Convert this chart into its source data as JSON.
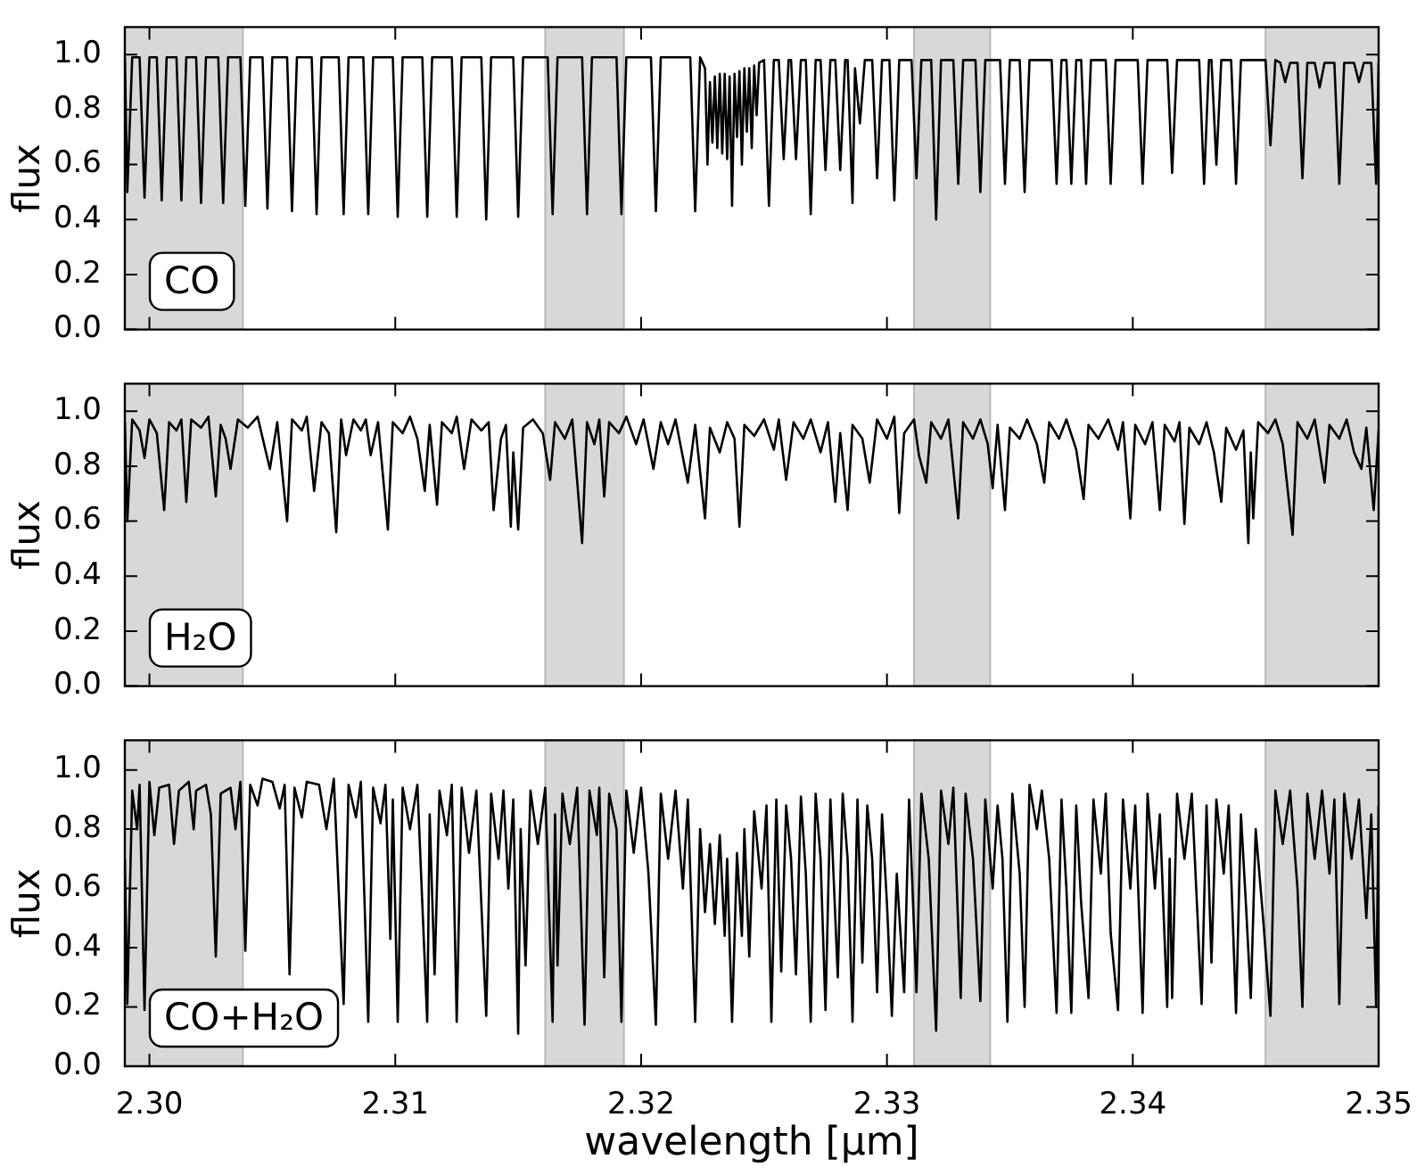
{
  "chart_data": [
    {
      "type": "line",
      "ylabel": "flux",
      "color": "#000000",
      "annotations": [
        "CO"
      ],
      "tick_labels": "y",
      "xlim": [
        2.299,
        2.35
      ],
      "ylim": [
        0,
        1.1
      ],
      "xticks": [
        2.3,
        2.31,
        2.32,
        2.33,
        2.34,
        2.35
      ],
      "yticks": [
        {
          "value": 0,
          "label": "0.0"
        },
        {
          "value": 0.2,
          "label": "0.2"
        },
        {
          "value": 0.4,
          "label": "0.4"
        },
        {
          "value": 0.6,
          "label": "0.6"
        },
        {
          "value": 0.8,
          "label": "0.8"
        },
        {
          "value": 1,
          "label": "1.0"
        }
      ],
      "bands": [
        {
          "axis": "x",
          "from": 2.299,
          "to": 2.3038,
          "color": "#d8d8d8"
        },
        {
          "axis": "x",
          "from": 2.3161,
          "to": 2.3193,
          "color": "#d8d8d8"
        },
        {
          "axis": "x",
          "from": 2.3311,
          "to": 2.3342,
          "color": "#d8d8d8"
        },
        {
          "axis": "x",
          "from": 2.3454,
          "to": 2.35,
          "color": "#d8d8d8"
        }
      ],
      "x": [
        2.299,
        2.2991,
        2.2993,
        2.2996,
        2.2998,
        2.3,
        2.3003,
        2.3005,
        2.3007,
        2.3011,
        2.3013,
        2.3015,
        2.3019,
        2.3021,
        2.3023,
        2.3028,
        2.303,
        2.3032,
        2.3037,
        2.3039,
        2.3041,
        2.3046,
        2.3048,
        2.305,
        2.3056,
        2.3058,
        2.306,
        2.3066,
        2.3068,
        2.307,
        2.3077,
        2.3079,
        2.3081,
        2.3087,
        2.3089,
        2.3091,
        2.3099,
        2.3101,
        2.3103,
        2.3111,
        2.3113,
        2.3115,
        2.3123,
        2.3125,
        2.3127,
        2.3135,
        2.3137,
        2.3139,
        2.3148,
        2.315,
        2.3152,
        2.3162,
        2.3164,
        2.3166,
        2.3176,
        2.3178,
        2.318,
        2.319,
        2.3192,
        2.3194,
        2.3204,
        2.3206,
        2.3208,
        2.322,
        2.3222,
        2.3224,
        2.3226,
        2.3227,
        2.3228,
        2.3229,
        2.323,
        2.3231,
        2.3232,
        2.3233,
        2.3234,
        2.3235,
        2.3236,
        2.3237,
        2.3238,
        2.3239,
        2.324,
        2.3241,
        2.3242,
        2.3243,
        2.3244,
        2.3245,
        2.3246,
        2.3247,
        2.3248,
        2.325,
        2.3252,
        2.3254,
        2.3256,
        2.3258,
        2.326,
        2.3261,
        2.3263,
        2.3265,
        2.3267,
        2.3269,
        2.3271,
        2.3273,
        2.3275,
        2.3277,
        2.3279,
        2.3281,
        2.3283,
        2.3284,
        2.3286,
        2.3287,
        2.3289,
        2.3291,
        2.3294,
        2.3296,
        2.3298,
        2.3301,
        2.3303,
        2.3305,
        2.331,
        2.3312,
        2.3314,
        2.3318,
        2.332,
        2.3322,
        2.3327,
        2.3329,
        2.3331,
        2.3336,
        2.3338,
        2.334,
        2.3346,
        2.3348,
        2.335,
        2.3354,
        2.3356,
        2.3358,
        2.3367,
        2.3369,
        2.3371,
        2.3373,
        2.3375,
        2.3377,
        2.3379,
        2.3381,
        2.3383,
        2.3389,
        2.3391,
        2.3393,
        2.3402,
        2.3404,
        2.3406,
        2.3414,
        2.3416,
        2.3418,
        2.3427,
        2.3429,
        2.3431,
        2.3432,
        2.3434,
        2.3436,
        2.344,
        2.3442,
        2.3444,
        2.3454,
        2.3456,
        2.3458,
        2.346,
        2.3462,
        2.3464,
        2.3467,
        2.3469,
        2.3471,
        2.3474,
        2.3476,
        2.3478,
        2.3482,
        2.3484,
        2.3486,
        2.349,
        2.3492,
        2.3494,
        2.3497,
        2.3499,
        2.35
      ],
      "values": [
        0.99,
        0.5,
        0.99,
        0.99,
        0.48,
        0.99,
        0.99,
        0.47,
        0.99,
        0.99,
        0.47,
        0.99,
        0.99,
        0.46,
        0.99,
        0.99,
        0.46,
        0.99,
        0.99,
        0.45,
        0.99,
        0.99,
        0.44,
        0.99,
        0.99,
        0.43,
        0.99,
        0.99,
        0.42,
        0.99,
        0.99,
        0.42,
        0.99,
        0.99,
        0.42,
        0.99,
        0.99,
        0.41,
        0.99,
        0.99,
        0.41,
        0.99,
        0.99,
        0.41,
        0.99,
        0.99,
        0.4,
        0.99,
        0.99,
        0.41,
        0.99,
        0.99,
        0.42,
        0.99,
        0.99,
        0.42,
        0.99,
        0.99,
        0.42,
        0.99,
        0.99,
        0.43,
        0.99,
        0.99,
        0.43,
        0.99,
        0.95,
        0.6,
        0.9,
        0.68,
        0.92,
        0.66,
        0.93,
        0.64,
        0.93,
        0.62,
        0.92,
        0.45,
        0.93,
        0.7,
        0.94,
        0.6,
        0.95,
        0.72,
        0.95,
        0.66,
        0.96,
        0.78,
        0.97,
        0.98,
        0.45,
        0.98,
        0.98,
        0.62,
        0.98,
        0.98,
        0.62,
        0.98,
        0.98,
        0.42,
        0.98,
        0.98,
        0.58,
        0.98,
        0.98,
        0.58,
        0.98,
        0.98,
        0.46,
        0.95,
        0.75,
        0.98,
        0.98,
        0.55,
        0.98,
        0.98,
        0.47,
        0.98,
        0.98,
        0.55,
        0.98,
        0.98,
        0.4,
        0.98,
        0.98,
        0.53,
        0.98,
        0.98,
        0.5,
        0.98,
        0.98,
        0.53,
        0.98,
        0.98,
        0.5,
        0.98,
        0.98,
        0.53,
        0.98,
        0.98,
        0.53,
        0.98,
        0.98,
        0.53,
        0.98,
        0.98,
        0.53,
        0.98,
        0.98,
        0.53,
        0.98,
        0.98,
        0.57,
        0.98,
        0.98,
        0.53,
        0.98,
        0.98,
        0.6,
        0.98,
        0.98,
        0.53,
        0.98,
        0.98,
        0.67,
        0.98,
        0.97,
        0.9,
        0.97,
        0.97,
        0.55,
        0.97,
        0.97,
        0.88,
        0.97,
        0.97,
        0.53,
        0.97,
        0.97,
        0.9,
        0.97,
        0.97,
        0.53,
        0.97
      ]
    },
    {
      "type": "line",
      "ylabel": "flux",
      "color": "#000000",
      "annotations": [
        "H₂O"
      ],
      "tick_labels": "y",
      "xlim": [
        2.299,
        2.35
      ],
      "ylim": [
        0,
        1.1
      ],
      "xticks": [
        2.3,
        2.31,
        2.32,
        2.33,
        2.34,
        2.35
      ],
      "yticks": [
        {
          "value": 0,
          "label": "0.0"
        },
        {
          "value": 0.2,
          "label": "0.2"
        },
        {
          "value": 0.4,
          "label": "0.4"
        },
        {
          "value": 0.6,
          "label": "0.6"
        },
        {
          "value": 0.8,
          "label": "0.8"
        },
        {
          "value": 1,
          "label": "1.0"
        }
      ],
      "bands": [
        {
          "axis": "x",
          "from": 2.299,
          "to": 2.3038,
          "color": "#d8d8d8"
        },
        {
          "axis": "x",
          "from": 2.3161,
          "to": 2.3193,
          "color": "#d8d8d8"
        },
        {
          "axis": "x",
          "from": 2.3311,
          "to": 2.3342,
          "color": "#d8d8d8"
        },
        {
          "axis": "x",
          "from": 2.3454,
          "to": 2.35,
          "color": "#d8d8d8"
        }
      ],
      "x": [
        2.299,
        2.2991,
        2.2993,
        2.2996,
        2.2998,
        2.3,
        2.3003,
        2.3006,
        2.3008,
        2.3011,
        2.3013,
        2.3015,
        2.3017,
        2.3021,
        2.3024,
        2.3027,
        2.3029,
        2.3031,
        2.3033,
        2.3036,
        2.304,
        2.3044,
        2.3049,
        2.3052,
        2.3056,
        2.3058,
        2.3062,
        2.3064,
        2.3067,
        2.307,
        2.3073,
        2.3076,
        2.3078,
        2.308,
        2.3083,
        2.3086,
        2.3088,
        2.309,
        2.3093,
        2.3097,
        2.3099,
        2.3103,
        2.3106,
        2.3109,
        2.3112,
        2.3114,
        2.3117,
        2.3119,
        2.3123,
        2.3125,
        2.3128,
        2.3131,
        2.3135,
        2.3138,
        2.314,
        2.3143,
        2.3145,
        2.3147,
        2.3148,
        2.315,
        2.3152,
        2.3156,
        2.316,
        2.3163,
        2.3165,
        2.3169,
        2.3172,
        2.3176,
        2.3178,
        2.3181,
        2.3183,
        2.3185,
        2.3187,
        2.3191,
        2.3194,
        2.3198,
        2.3201,
        2.3205,
        2.3208,
        2.3211,
        2.3214,
        2.3219,
        2.3222,
        2.3226,
        2.3228,
        2.3232,
        2.3235,
        2.3238,
        2.324,
        2.3242,
        2.3246,
        2.325,
        2.3254,
        2.3256,
        2.3259,
        2.3262,
        2.3266,
        2.3269,
        2.3273,
        2.3276,
        2.3279,
        2.3281,
        2.3284,
        2.3286,
        2.329,
        2.3293,
        2.3296,
        2.33,
        2.3303,
        2.3305,
        2.3307,
        2.3311,
        2.3313,
        2.3316,
        2.3318,
        2.3322,
        2.3325,
        2.3329,
        2.3331,
        2.3335,
        2.3338,
        2.3341,
        2.3343,
        2.3345,
        2.3348,
        2.335,
        2.3354,
        2.3357,
        2.3361,
        2.3364,
        2.3366,
        2.337,
        2.3373,
        2.3377,
        2.338,
        2.3382,
        2.3386,
        2.339,
        2.3394,
        2.3396,
        2.3399,
        2.3401,
        2.3405,
        2.3408,
        2.3411,
        2.3413,
        2.3417,
        2.3419,
        2.3421,
        2.3423,
        2.3427,
        2.343,
        2.3433,
        2.3436,
        2.3438,
        2.3442,
        2.3445,
        2.3447,
        2.3448,
        2.3449,
        2.3451,
        2.3455,
        2.3458,
        2.3461,
        2.3465,
        2.3467,
        2.3471,
        2.3474,
        2.3478,
        2.348,
        2.3484,
        2.3487,
        2.349,
        2.3493,
        2.3495,
        2.3498,
        2.35
      ],
      "values": [
        0.96,
        0.6,
        0.97,
        0.93,
        0.83,
        0.97,
        0.92,
        0.64,
        0.96,
        0.93,
        0.97,
        0.67,
        0.97,
        0.94,
        0.98,
        0.69,
        0.95,
        0.9,
        0.79,
        0.97,
        0.94,
        0.98,
        0.79,
        0.96,
        0.6,
        0.97,
        0.93,
        0.98,
        0.71,
        0.96,
        0.92,
        0.56,
        0.97,
        0.84,
        0.97,
        0.93,
        0.97,
        0.84,
        0.96,
        0.57,
        0.96,
        0.92,
        0.98,
        0.9,
        0.71,
        0.95,
        0.66,
        0.96,
        0.92,
        0.98,
        0.79,
        0.97,
        0.93,
        0.96,
        0.64,
        0.9,
        0.95,
        0.58,
        0.85,
        0.57,
        0.94,
        0.97,
        0.92,
        0.75,
        0.96,
        0.9,
        0.97,
        0.52,
        0.96,
        0.88,
        0.97,
        0.69,
        0.96,
        0.92,
        0.98,
        0.88,
        0.97,
        0.79,
        0.96,
        0.88,
        0.97,
        0.74,
        0.95,
        0.61,
        0.94,
        0.85,
        0.96,
        0.9,
        0.58,
        0.95,
        0.91,
        0.97,
        0.86,
        0.97,
        0.75,
        0.96,
        0.9,
        0.97,
        0.85,
        0.96,
        0.67,
        0.92,
        0.64,
        0.95,
        0.9,
        0.74,
        0.97,
        0.9,
        0.98,
        0.63,
        0.92,
        0.97,
        0.84,
        0.74,
        0.96,
        0.9,
        0.97,
        0.61,
        0.96,
        0.9,
        0.97,
        0.88,
        0.72,
        0.95,
        0.64,
        0.94,
        0.9,
        0.97,
        0.88,
        0.74,
        0.96,
        0.9,
        0.97,
        0.86,
        0.68,
        0.95,
        0.9,
        0.97,
        0.86,
        0.96,
        0.61,
        0.95,
        0.88,
        0.96,
        0.64,
        0.95,
        0.89,
        0.96,
        0.59,
        0.94,
        0.88,
        0.96,
        0.85,
        0.67,
        0.94,
        0.86,
        0.93,
        0.52,
        0.85,
        0.61,
        0.96,
        0.92,
        0.97,
        0.88,
        0.55,
        0.96,
        0.9,
        0.97,
        0.74,
        0.95,
        0.9,
        0.97,
        0.85,
        0.79,
        0.94,
        0.64,
        0.93
      ]
    },
    {
      "type": "line",
      "ylabel": "flux",
      "xlabel": "wavelength [μm]",
      "color": "#000000",
      "annotations": [
        "CO+H₂O"
      ],
      "xlim": [
        2.299,
        2.35
      ],
      "ylim": [
        0,
        1.1
      ],
      "xticks": [
        {
          "value": 2.3,
          "label": "2.30"
        },
        {
          "value": 2.31,
          "label": "2.31"
        },
        {
          "value": 2.32,
          "label": "2.32"
        },
        {
          "value": 2.33,
          "label": "2.33"
        },
        {
          "value": 2.34,
          "label": "2.34"
        },
        {
          "value": 2.35,
          "label": "2.35"
        }
      ],
      "yticks": [
        {
          "value": 0,
          "label": "0.0"
        },
        {
          "value": 0.2,
          "label": "0.2"
        },
        {
          "value": 0.4,
          "label": "0.4"
        },
        {
          "value": 0.6,
          "label": "0.6"
        },
        {
          "value": 0.8,
          "label": "0.8"
        },
        {
          "value": 1,
          "label": "1.0"
        }
      ],
      "bands": [
        {
          "axis": "x",
          "from": 2.299,
          "to": 2.3038,
          "color": "#d8d8d8"
        },
        {
          "axis": "x",
          "from": 2.3161,
          "to": 2.3193,
          "color": "#d8d8d8"
        },
        {
          "axis": "x",
          "from": 2.3311,
          "to": 2.3342,
          "color": "#d8d8d8"
        },
        {
          "axis": "x",
          "from": 2.3454,
          "to": 2.35,
          "color": "#d8d8d8"
        }
      ],
      "x": [
        2.299,
        2.2991,
        2.2993,
        2.2995,
        2.2996,
        2.2998,
        2.3,
        2.3002,
        2.3004,
        2.3006,
        2.3008,
        2.301,
        2.3012,
        2.3014,
        2.3016,
        2.3018,
        2.3019,
        2.3021,
        2.3023,
        2.3025,
        2.3027,
        2.3029,
        2.3031,
        2.3033,
        2.3035,
        2.3037,
        2.3039,
        2.3041,
        2.3044,
        2.3046,
        2.3048,
        2.305,
        2.3053,
        2.3055,
        2.3057,
        2.3059,
        2.3062,
        2.3064,
        2.3067,
        2.3069,
        2.3072,
        2.3075,
        2.3079,
        2.3081,
        2.3084,
        2.3086,
        2.3089,
        2.3091,
        2.3094,
        2.3096,
        2.3098,
        2.3099,
        2.3101,
        2.3103,
        2.3106,
        2.3109,
        2.3113,
        2.3114,
        2.3116,
        2.3118,
        2.3121,
        2.3123,
        2.3125,
        2.3127,
        2.313,
        2.3133,
        2.3137,
        2.3139,
        2.3142,
        2.3144,
        2.3146,
        2.3148,
        2.315,
        2.3151,
        2.3153,
        2.3155,
        2.3158,
        2.3161,
        2.3164,
        2.3165,
        2.3166,
        2.3168,
        2.3171,
        2.3174,
        2.3177,
        2.3179,
        2.3182,
        2.3183,
        2.3185,
        2.3187,
        2.319,
        2.3192,
        2.3194,
        2.3197,
        2.32,
        2.3203,
        2.3206,
        2.3208,
        2.3211,
        2.3214,
        2.3217,
        2.3219,
        2.3222,
        2.3224,
        2.3226,
        2.3228,
        2.323,
        2.3232,
        2.3234,
        2.3235,
        2.3237,
        2.3239,
        2.3241,
        2.3242,
        2.3244,
        2.3246,
        2.3249,
        2.3251,
        2.3253,
        2.3255,
        2.3257,
        2.3259,
        2.3261,
        2.3263,
        2.3265,
        2.3267,
        2.3269,
        2.3271,
        2.3273,
        2.3275,
        2.3277,
        2.328,
        2.3282,
        2.3284,
        2.3286,
        2.3288,
        2.329,
        2.3292,
        2.3294,
        2.3296,
        2.3298,
        2.33,
        2.3302,
        2.3304,
        2.3307,
        2.3309,
        2.3312,
        2.3314,
        2.3317,
        2.332,
        2.3322,
        2.3325,
        2.3327,
        2.333,
        2.3332,
        2.3335,
        2.3338,
        2.334,
        2.3343,
        2.3345,
        2.3347,
        2.3349,
        2.3351,
        2.3354,
        2.3356,
        2.3358,
        2.3361,
        2.3363,
        2.3366,
        2.3369,
        2.3371,
        2.3373,
        2.3375,
        2.3377,
        2.3379,
        2.3382,
        2.3384,
        2.3387,
        2.3389,
        2.3391,
        2.3394,
        2.3396,
        2.3399,
        2.3401,
        2.3404,
        2.3406,
        2.3409,
        2.3411,
        2.3414,
        2.3415,
        2.3416,
        2.3418,
        2.3421,
        2.3424,
        2.3428,
        2.343,
        2.3432,
        2.3434,
        2.3437,
        2.3439,
        2.3442,
        2.3444,
        2.3446,
        2.3448,
        2.345,
        2.3453,
        2.3456,
        2.3458,
        2.3461,
        2.3464,
        2.3467,
        2.3469,
        2.3471,
        2.3474,
        2.3477,
        2.348,
        2.3482,
        2.3484,
        2.3486,
        2.3489,
        2.3492,
        2.3495,
        2.3497,
        2.3499,
        2.35
      ],
      "values": [
        0.7,
        0.21,
        0.93,
        0.8,
        0.95,
        0.19,
        0.96,
        0.78,
        0.94,
        null,
        0.95,
        0.75,
        0.93,
        null,
        0.96,
        0.8,
        0.93,
        null,
        0.95,
        0.85,
        0.37,
        0.92,
        null,
        0.94,
        0.8,
        0.96,
        0.39,
        0.95,
        0.88,
        0.97,
        null,
        0.96,
        0.87,
        0.95,
        0.31,
        0.94,
        0.84,
        0.96,
        null,
        0.95,
        0.8,
        0.97,
        0.21,
        0.95,
        0.84,
        0.96,
        0.15,
        0.94,
        0.82,
        0.95,
        0.43,
        0.9,
        0.15,
        0.94,
        0.8,
        0.95,
        0.15,
        0.85,
        0.31,
        0.93,
        0.78,
        0.95,
        0.15,
        0.94,
        0.72,
        0.93,
        0.17,
        0.92,
        0.7,
        0.93,
        0.6,
        0.9,
        0.11,
        0.8,
        0.34,
        0.93,
        0.75,
        0.94,
        0.15,
        0.85,
        0.34,
        0.92,
        0.75,
        0.94,
        0.14,
        0.93,
        0.78,
        0.94,
        0.3,
        0.92,
        0.8,
        0.15,
        0.93,
        0.72,
        0.94,
        0.65,
        0.14,
        0.92,
        0.7,
        0.93,
        0.6,
        0.9,
        0.15,
        0.8,
        0.52,
        0.75,
        0.48,
        0.78,
        0.44,
        0.7,
        0.15,
        0.72,
        0.44,
        0.8,
        0.37,
        0.86,
        0.6,
        0.88,
        0.15,
        0.9,
        0.32,
        0.88,
        0.7,
        0.31,
        0.91,
        0.65,
        0.15,
        0.92,
        0.7,
        0.19,
        0.9,
        0.3,
        0.92,
        0.7,
        0.15,
        0.9,
        0.35,
        0.88,
        0.7,
        0.25,
        0.85,
        0.55,
        0.17,
        0.65,
        0.25,
        0.9,
        0.25,
        0.92,
        0.7,
        0.12,
        0.93,
        0.75,
        0.94,
        0.23,
        0.92,
        0.7,
        0.22,
        0.9,
        0.6,
        0.88,
        0.7,
        0.15,
        0.92,
        0.65,
        0.2,
        0.95,
        0.8,
        0.93,
        0.7,
        0.18,
        0.9,
        0.6,
        0.18,
        0.88,
        0.55,
        0.23,
        0.9,
        0.65,
        0.92,
        0.45,
        0.19,
        0.9,
        0.6,
        0.88,
        0.18,
        0.92,
        0.6,
        0.85,
        0.2,
        0.7,
        0.23,
        0.92,
        0.7,
        0.92,
        0.21,
        0.88,
        0.35,
        0.9,
        0.65,
        0.88,
        0.18,
        0.85,
        0.55,
        0.23,
        0.8,
        0.5,
        0.17,
        0.93,
        0.75,
        0.93,
        0.6,
        0.2,
        0.92,
        0.7,
        0.93,
        0.65,
        0.9,
        0.21,
        0.92,
        0.7,
        0.9,
        0.5,
        0.85,
        0.2,
        0.88
      ]
    }
  ]
}
